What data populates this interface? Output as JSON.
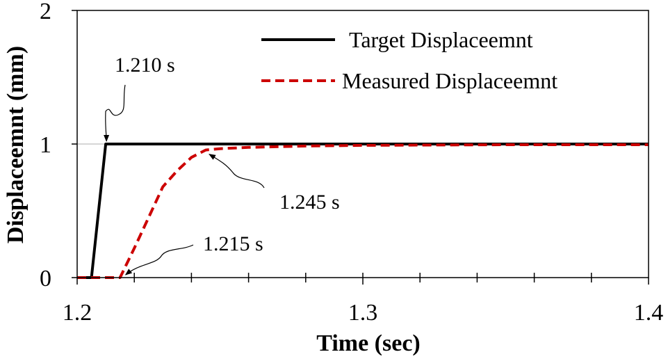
{
  "chart_data": {
    "type": "line",
    "title": "",
    "xlabel": "Time (sec)",
    "ylabel": "Displaceemnt (mm)",
    "xlim": [
      1.2,
      1.4
    ],
    "ylim": [
      0,
      2
    ],
    "x_ticks": [
      1.2,
      1.3,
      1.4
    ],
    "x_tick_labels": [
      "1.2",
      "1.3",
      "1.4"
    ],
    "y_ticks": [
      0,
      1,
      2
    ],
    "y_tick_labels": [
      "0",
      "1",
      "2"
    ],
    "grid": "horizontal line at y=1",
    "legend_position": "top-right",
    "series": [
      {
        "name": "Target  Displaceemnt",
        "color": "#000000",
        "style": "solid",
        "x": [
          1.2,
          1.205,
          1.21,
          1.4
        ],
        "y": [
          0,
          0,
          1,
          1
        ]
      },
      {
        "name": "Measured Displaceemnt",
        "color": "#cc0000",
        "style": "dashed",
        "x": [
          1.2,
          1.215,
          1.22,
          1.225,
          1.23,
          1.235,
          1.24,
          1.245,
          1.25,
          1.26,
          1.28,
          1.3,
          1.35,
          1.4
        ],
        "y": [
          0,
          0,
          0.22,
          0.45,
          0.68,
          0.8,
          0.9,
          0.955,
          0.965,
          0.975,
          0.985,
          0.99,
          0.995,
          0.995
        ]
      }
    ],
    "annotations": [
      {
        "text": "1.210 s",
        "x": 1.21,
        "y": 1
      },
      {
        "text": "1.245 s",
        "x": 1.245,
        "y": 0.955
      },
      {
        "text": "1.215 s",
        "x": 1.215,
        "y": 0
      }
    ]
  }
}
